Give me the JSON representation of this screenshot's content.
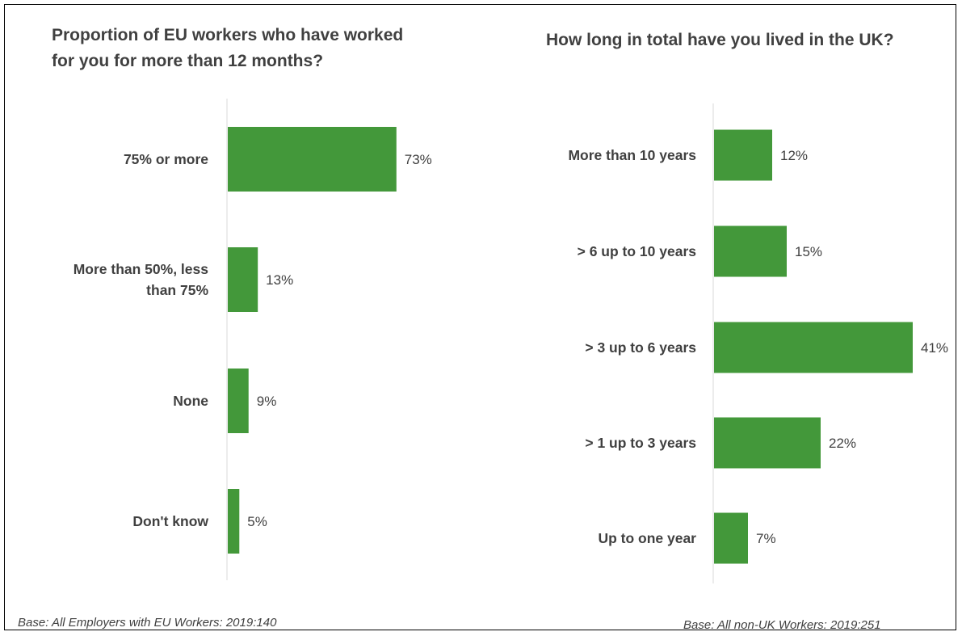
{
  "chart_data": [
    {
      "type": "bar",
      "orientation": "horizontal",
      "title": "Proportion of EU workers who have worked\nfor you for more than 12 months?",
      "categories": [
        "75% or more",
        "More than 50%, less than 75%",
        "None",
        "Don't know"
      ],
      "category_lines": [
        [
          "75% or more"
        ],
        [
          "More than 50%, less",
          "than 75%"
        ],
        [
          "None"
        ],
        [
          "Don't know"
        ]
      ],
      "values": [
        73,
        13,
        9,
        5
      ],
      "value_labels": [
        "73%",
        "13%",
        "9%",
        "5%"
      ],
      "unit": "%",
      "bar_color": "#43983A",
      "base_note": "Base: All Employers with EU Workers: 2019:140",
      "grid": false
    },
    {
      "type": "bar",
      "orientation": "horizontal",
      "title": "How long in total have you lived in the UK?",
      "categories": [
        "More than 10 years",
        "> 6 up to 10 years",
        "> 3 up to 6 years",
        "> 1 up to 3 years",
        "Up to one year"
      ],
      "category_lines": [
        [
          "More than 10 years"
        ],
        [
          "> 6 up to 10 years"
        ],
        [
          "> 3 up to 6 years"
        ],
        [
          "> 1 up to 3 years"
        ],
        [
          "Up to one year"
        ]
      ],
      "values": [
        12,
        15,
        41,
        22,
        7
      ],
      "value_labels": [
        "12%",
        "15%",
        "41%",
        "22%",
        "7%"
      ],
      "unit": "%",
      "bar_color": "#43983A",
      "base_note": "Base: All non-UK Workers: 2019:251",
      "grid": false
    }
  ]
}
